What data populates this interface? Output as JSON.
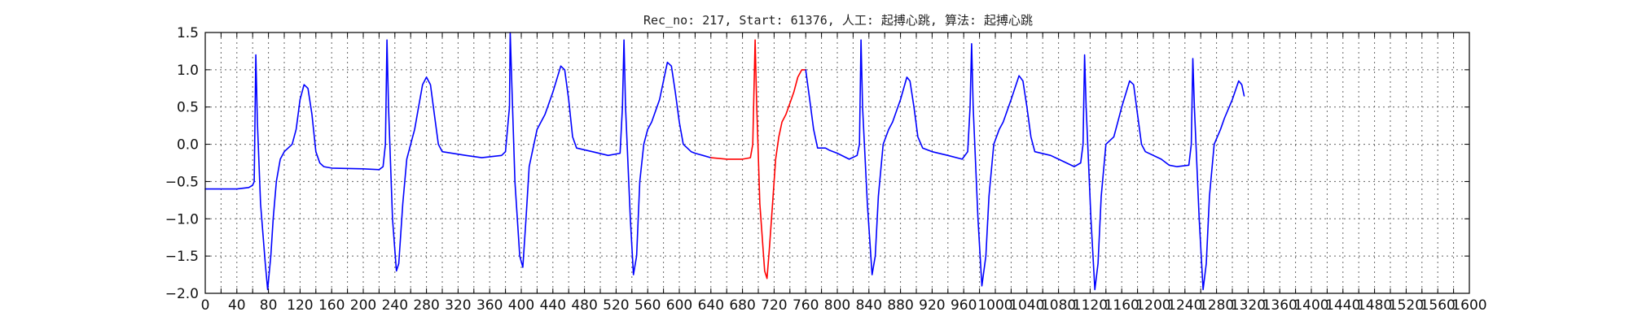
{
  "chart_data": {
    "type": "line",
    "title": "Rec_no: 217, Start: 61376, 人工: 起搏心跳, 算法: 起搏心跳",
    "xlabel": "",
    "ylabel": "",
    "xlim": [
      0,
      1600
    ],
    "ylim": [
      -2.0,
      1.5
    ],
    "grid": true,
    "grid_style": "dotted",
    "y_ticks": [
      1.5,
      1.0,
      0.5,
      0.0,
      -0.5,
      -1.0,
      -1.5,
      -2.0
    ],
    "y_tick_labels": [
      "1.5",
      "1.0",
      "0.5",
      "0.0",
      "−0.5",
      "−1.0",
      "−1.5",
      "−2.0"
    ],
    "x_ticks": [
      0,
      20,
      40,
      60,
      80,
      100,
      120,
      140,
      160,
      180,
      200,
      220,
      240,
      260,
      280,
      300,
      320,
      340,
      360,
      380,
      400,
      420,
      440,
      460,
      480,
      500,
      520,
      540,
      560,
      580,
      600,
      620,
      640,
      660,
      680,
      700,
      720,
      740,
      760,
      780,
      800,
      820,
      840,
      860,
      880,
      900,
      920,
      940,
      960,
      980,
      1000,
      1020,
      1040,
      1060,
      1080,
      1100,
      1120,
      1140,
      1160,
      1180,
      1200,
      1220,
      1240,
      1260,
      1280,
      1300,
      1320,
      1340,
      1360,
      1380,
      1400,
      1420,
      1440,
      1460,
      1480,
      1500,
      1520,
      1540,
      1560,
      1580,
      1600
    ],
    "x_tick_labels": [
      "0",
      "",
      "40",
      "",
      "80",
      "",
      "120",
      "",
      "160",
      "",
      "200",
      "",
      "240",
      "",
      "280",
      "",
      "320",
      "",
      "360",
      "",
      "400",
      "",
      "440",
      "",
      "480",
      "",
      "520",
      "",
      "560",
      "",
      "600",
      "",
      "640",
      "",
      "680",
      "",
      "720",
      "",
      "760",
      "",
      "800",
      "",
      "840",
      "",
      "880",
      "",
      "920",
      "",
      "960",
      "",
      "1000",
      "",
      "1040",
      "",
      "1080",
      "",
      "1120",
      "",
      "1160",
      "",
      "1200",
      "",
      "1240",
      "",
      "1280",
      "",
      "1320",
      "",
      "1360",
      "",
      "1400",
      "",
      "1440",
      "",
      "1480",
      "",
      "1520",
      "",
      "1560",
      "",
      "1600"
    ],
    "series": [
      {
        "color": "#0000ff",
        "segment": "before",
        "points": [
          [
            0,
            -0.6
          ],
          [
            20,
            -0.6
          ],
          [
            40,
            -0.6
          ],
          [
            55,
            -0.58
          ],
          [
            60,
            -0.55
          ],
          [
            62,
            -0.5
          ],
          [
            64,
            1.2
          ],
          [
            66,
            0.3
          ],
          [
            70,
            -0.8
          ],
          [
            76,
            -1.6
          ],
          [
            79,
            -1.95
          ],
          [
            83,
            -1.5
          ],
          [
            86,
            -1.0
          ],
          [
            90,
            -0.5
          ],
          [
            95,
            -0.2
          ],
          [
            100,
            -0.1
          ],
          [
            110,
            0.0
          ],
          [
            115,
            0.2
          ],
          [
            120,
            0.6
          ],
          [
            125,
            0.8
          ],
          [
            130,
            0.75
          ],
          [
            135,
            0.4
          ],
          [
            140,
            -0.1
          ],
          [
            145,
            -0.25
          ],
          [
            150,
            -0.3
          ],
          [
            160,
            -0.32
          ],
          [
            200,
            -0.33
          ],
          [
            220,
            -0.34
          ],
          [
            225,
            -0.3
          ],
          [
            228,
            0.0
          ],
          [
            230,
            1.4
          ],
          [
            232,
            0.5
          ],
          [
            237,
            -1.0
          ],
          [
            242,
            -1.7
          ],
          [
            245,
            -1.6
          ],
          [
            250,
            -0.8
          ],
          [
            255,
            -0.2
          ],
          [
            260,
            0.0
          ],
          [
            265,
            0.2
          ],
          [
            270,
            0.5
          ],
          [
            275,
            0.8
          ],
          [
            280,
            0.9
          ],
          [
            285,
            0.8
          ],
          [
            290,
            0.4
          ],
          [
            295,
            0.0
          ],
          [
            300,
            -0.1
          ],
          [
            330,
            -0.15
          ],
          [
            350,
            -0.18
          ],
          [
            375,
            -0.15
          ],
          [
            380,
            -0.1
          ],
          [
            385,
            0.5
          ],
          [
            386,
            1.5
          ],
          [
            388,
            0.8
          ],
          [
            392,
            -0.5
          ],
          [
            398,
            -1.5
          ],
          [
            402,
            -1.65
          ],
          [
            406,
            -1.0
          ],
          [
            410,
            -0.3
          ],
          [
            420,
            0.2
          ],
          [
            430,
            0.4
          ],
          [
            440,
            0.7
          ],
          [
            450,
            1.05
          ],
          [
            455,
            1.0
          ],
          [
            460,
            0.6
          ],
          [
            465,
            0.1
          ],
          [
            470,
            -0.05
          ],
          [
            490,
            -0.1
          ],
          [
            510,
            -0.15
          ],
          [
            525,
            -0.12
          ],
          [
            528,
            0.5
          ],
          [
            530,
            1.4
          ],
          [
            532,
            0.5
          ],
          [
            538,
            -1.0
          ],
          [
            542,
            -1.75
          ],
          [
            546,
            -1.5
          ],
          [
            550,
            -0.5
          ],
          [
            555,
            0.0
          ],
          [
            560,
            0.2
          ],
          [
            565,
            0.3
          ],
          [
            575,
            0.6
          ],
          [
            585,
            1.1
          ],
          [
            590,
            1.05
          ],
          [
            595,
            0.7
          ],
          [
            600,
            0.3
          ],
          [
            605,
            0.0
          ],
          [
            615,
            -0.1
          ],
          [
            620,
            -0.12
          ],
          [
            630,
            -0.15
          ],
          [
            640,
            -0.18
          ]
        ]
      },
      {
        "color": "#ff0000",
        "segment": "annotated",
        "points": [
          [
            640,
            -0.18
          ],
          [
            660,
            -0.2
          ],
          [
            680,
            -0.2
          ],
          [
            690,
            -0.18
          ],
          [
            693,
            0.0
          ],
          [
            696,
            1.4
          ],
          [
            698,
            0.5
          ],
          [
            702,
            -0.8
          ],
          [
            708,
            -1.7
          ],
          [
            711,
            -1.8
          ],
          [
            714,
            -1.4
          ],
          [
            718,
            -0.8
          ],
          [
            722,
            -0.2
          ],
          [
            726,
            0.1
          ],
          [
            730,
            0.3
          ],
          [
            735,
            0.4
          ],
          [
            740,
            0.55
          ],
          [
            745,
            0.7
          ],
          [
            750,
            0.9
          ],
          [
            755,
            1.0
          ],
          [
            760,
            1.0
          ]
        ]
      },
      {
        "color": "#0000ff",
        "segment": "after",
        "points": [
          [
            760,
            1.0
          ],
          [
            765,
            0.6
          ],
          [
            770,
            0.2
          ],
          [
            775,
            -0.05
          ],
          [
            785,
            -0.05
          ],
          [
            790,
            -0.08
          ],
          [
            800,
            -0.12
          ],
          [
            815,
            -0.2
          ],
          [
            825,
            -0.15
          ],
          [
            828,
            0.0
          ],
          [
            830,
            1.4
          ],
          [
            832,
            0.5
          ],
          [
            838,
            -0.8
          ],
          [
            844,
            -1.75
          ],
          [
            848,
            -1.5
          ],
          [
            852,
            -0.7
          ],
          [
            858,
            0.0
          ],
          [
            865,
            0.2
          ],
          [
            870,
            0.3
          ],
          [
            880,
            0.6
          ],
          [
            888,
            0.9
          ],
          [
            892,
            0.85
          ],
          [
            897,
            0.5
          ],
          [
            902,
            0.1
          ],
          [
            908,
            -0.05
          ],
          [
            920,
            -0.1
          ],
          [
            940,
            -0.15
          ],
          [
            958,
            -0.2
          ],
          [
            965,
            -0.1
          ],
          [
            968,
            0.5
          ],
          [
            970,
            1.35
          ],
          [
            972,
            0.5
          ],
          [
            978,
            -1.0
          ],
          [
            983,
            -1.9
          ],
          [
            988,
            -1.5
          ],
          [
            992,
            -0.7
          ],
          [
            998,
            0.0
          ],
          [
            1005,
            0.2
          ],
          [
            1010,
            0.3
          ],
          [
            1020,
            0.6
          ],
          [
            1030,
            0.92
          ],
          [
            1035,
            0.85
          ],
          [
            1040,
            0.5
          ],
          [
            1045,
            0.1
          ],
          [
            1050,
            -0.1
          ],
          [
            1070,
            -0.15
          ],
          [
            1080,
            -0.2
          ],
          [
            1090,
            -0.25
          ],
          [
            1100,
            -0.3
          ],
          [
            1108,
            -0.25
          ],
          [
            1111,
            0.0
          ],
          [
            1113,
            1.2
          ],
          [
            1115,
            0.5
          ],
          [
            1121,
            -1.0
          ],
          [
            1126,
            -1.95
          ],
          [
            1130,
            -1.6
          ],
          [
            1134,
            -0.7
          ],
          [
            1140,
            0.0
          ],
          [
            1150,
            0.1
          ],
          [
            1155,
            0.3
          ],
          [
            1160,
            0.5
          ],
          [
            1170,
            0.85
          ],
          [
            1175,
            0.8
          ],
          [
            1180,
            0.4
          ],
          [
            1185,
            0.0
          ],
          [
            1190,
            -0.1
          ],
          [
            1210,
            -0.2
          ],
          [
            1220,
            -0.28
          ],
          [
            1230,
            -0.3
          ],
          [
            1245,
            -0.28
          ],
          [
            1248,
            0.0
          ],
          [
            1250,
            1.15
          ],
          [
            1252,
            0.5
          ],
          [
            1258,
            -1.0
          ],
          [
            1263,
            -1.95
          ],
          [
            1267,
            -1.6
          ],
          [
            1271,
            -0.7
          ],
          [
            1277,
            0.0
          ],
          [
            1285,
            0.2
          ],
          [
            1290,
            0.35
          ],
          [
            1300,
            0.6
          ],
          [
            1308,
            0.85
          ],
          [
            1312,
            0.8
          ],
          [
            1315,
            0.65
          ]
        ]
      }
    ]
  }
}
